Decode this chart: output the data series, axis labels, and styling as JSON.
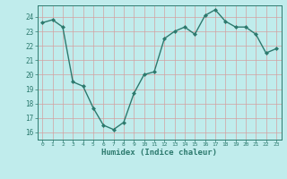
{
  "x": [
    0,
    1,
    2,
    3,
    4,
    5,
    6,
    7,
    8,
    9,
    10,
    11,
    12,
    13,
    14,
    15,
    16,
    17,
    18,
    19,
    20,
    21,
    22,
    23
  ],
  "y": [
    23.6,
    23.8,
    23.3,
    19.5,
    19.2,
    17.7,
    16.5,
    16.2,
    16.7,
    18.7,
    20.0,
    20.2,
    22.5,
    23.0,
    23.3,
    22.8,
    24.1,
    24.5,
    23.7,
    23.3,
    23.3,
    22.8,
    21.5,
    21.8
  ],
  "xlabel": "Humidex (Indice chaleur)",
  "ylim": [
    15.5,
    24.8
  ],
  "xlim": [
    -0.5,
    23.5
  ],
  "yticks": [
    16,
    17,
    18,
    19,
    20,
    21,
    22,
    23,
    24
  ],
  "xticks": [
    0,
    1,
    2,
    3,
    4,
    5,
    6,
    7,
    8,
    9,
    10,
    11,
    12,
    13,
    14,
    15,
    16,
    17,
    18,
    19,
    20,
    21,
    22,
    23
  ],
  "line_color": "#2d7a6e",
  "marker_color": "#2d7a6e",
  "bg_color": "#c0ecec",
  "grid_color": "#d4a0a0",
  "axis_color": "#2d7a6e",
  "tick_color": "#2d7a6e",
  "label_color": "#2d7a6e",
  "marker": "D",
  "marker_size": 2,
  "line_width": 1.0
}
